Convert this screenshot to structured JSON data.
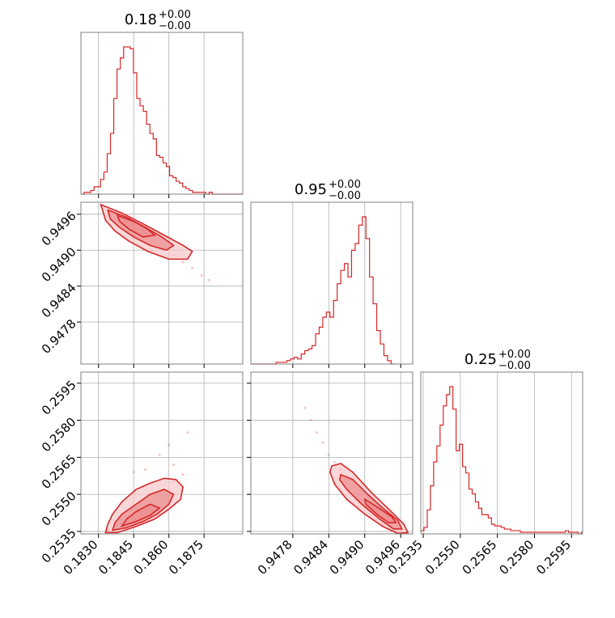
{
  "colors": {
    "accent": "#d62728",
    "fill_light": "#f6c6c7",
    "fill_mid": "#ec8b8d",
    "grid": "#b0b0b0",
    "frame": "#808080"
  },
  "chart_data": {
    "type": "corner",
    "grid": true,
    "parameters": [
      {
        "title": {
          "value": "0.18",
          "sup": "+0.00",
          "sub": "−0.00"
        },
        "range": [
          0.18225,
          0.18915
        ],
        "ticks": [
          0.183,
          0.1845,
          0.186,
          0.1875
        ],
        "tick_labels": [
          "0.1830",
          "0.1845",
          "0.1860",
          "0.1875"
        ]
      },
      {
        "title": {
          "value": "0.95",
          "sup": "+0.00",
          "sub": "−0.00"
        },
        "range": [
          0.9471,
          0.9498
        ],
        "ticks": [
          0.9478,
          0.9484,
          0.949,
          0.9496
        ],
        "tick_labels": [
          "0.9478",
          "0.9484",
          "0.9490",
          "0.9496"
        ]
      },
      {
        "title": {
          "value": "0.25",
          "sup": "+0.00",
          "sub": "−0.00"
        },
        "range": [
          0.2534,
          0.25995
        ],
        "ticks": [
          0.2535,
          0.255,
          0.2565,
          0.258,
          0.2595
        ],
        "tick_labels": [
          "0.2535",
          "0.2550",
          "0.2565",
          "0.2580",
          "0.2595"
        ]
      }
    ],
    "histograms": [
      {
        "param": 0,
        "edges_from": 0.18225,
        "bin_width": 0.00014,
        "counts": [
          0,
          1,
          1,
          2,
          4,
          4,
          8,
          12,
          22,
          33,
          52,
          68,
          74,
          80,
          80,
          79,
          66,
          52,
          48,
          45,
          38,
          33,
          30,
          21,
          20,
          17,
          15,
          10,
          9,
          7,
          6,
          4,
          3,
          2,
          1,
          1,
          1,
          1,
          0,
          1,
          0,
          0,
          0,
          0,
          0,
          0,
          0,
          0,
          0,
          0
        ]
      },
      {
        "param": 1,
        "edges_from": 0.9471,
        "bin_width": 6e-05,
        "counts": [
          0,
          0,
          0,
          0,
          0,
          0,
          0,
          1,
          1,
          1,
          2,
          3,
          4,
          3,
          6,
          8,
          9,
          11,
          18,
          22,
          28,
          31,
          28,
          38,
          48,
          56,
          60,
          52,
          68,
          72,
          83,
          88,
          75,
          52,
          36,
          20,
          12,
          5,
          2,
          0
        ]
      },
      {
        "param": 2,
        "edges_from": 0.2534,
        "bin_width": 0.00013,
        "counts": [
          2,
          4,
          15,
          30,
          45,
          55,
          68,
          80,
          87,
          92,
          78,
          52,
          56,
          42,
          38,
          28,
          25,
          20,
          16,
          12,
          12,
          10,
          6,
          5,
          5,
          4,
          3,
          3,
          2,
          2,
          2,
          1,
          1,
          1,
          1,
          1,
          1,
          1,
          1,
          1,
          1,
          1,
          1,
          1,
          1,
          2,
          1,
          1,
          1,
          0,
          1
        ]
      }
    ],
    "joint": [
      {
        "x": 0,
        "y": 1,
        "points": [
          [
            0.1831,
            0.94974
          ],
          [
            0.1834,
            0.94965
          ],
          [
            0.1838,
            0.94955
          ],
          [
            0.1842,
            0.94945
          ],
          [
            0.1846,
            0.94935
          ],
          [
            0.185,
            0.94925
          ],
          [
            0.1854,
            0.94915
          ],
          [
            0.1858,
            0.94903
          ],
          [
            0.1862,
            0.94892
          ],
          [
            0.1866,
            0.9488
          ],
          [
            0.187,
            0.9487
          ],
          [
            0.1874,
            0.94858
          ],
          [
            0.1877,
            0.9485
          ]
        ],
        "contours": [
          [
            [
              0.1831,
              0.94976
            ],
            [
              0.184,
              0.94962
            ],
            [
              0.185,
              0.94942
            ],
            [
              0.1858,
              0.94925
            ],
            [
              0.1866,
              0.94908
            ],
            [
              0.187,
              0.94898
            ],
            [
              0.1868,
              0.94885
            ],
            [
              0.186,
              0.94885
            ],
            [
              0.1851,
              0.94898
            ],
            [
              0.1843,
              0.94915
            ],
            [
              0.1837,
              0.94932
            ],
            [
              0.1833,
              0.9495
            ],
            [
              0.1831,
              0.94976
            ]
          ],
          [
            [
              0.1834,
              0.94967
            ],
            [
              0.1842,
              0.94955
            ],
            [
              0.185,
              0.94938
            ],
            [
              0.1857,
              0.94922
            ],
            [
              0.1862,
              0.94908
            ],
            [
              0.1859,
              0.949
            ],
            [
              0.1852,
              0.94908
            ],
            [
              0.1845,
              0.94922
            ],
            [
              0.1839,
              0.94938
            ],
            [
              0.1835,
              0.94952
            ],
            [
              0.1834,
              0.94967
            ]
          ],
          [
            [
              0.1838,
              0.94958
            ],
            [
              0.1845,
              0.94948
            ],
            [
              0.1851,
              0.94935
            ],
            [
              0.1854,
              0.94925
            ],
            [
              0.1849,
              0.94922
            ],
            [
              0.1843,
              0.94935
            ],
            [
              0.1839,
              0.94948
            ],
            [
              0.1838,
              0.94958
            ]
          ]
        ]
      },
      {
        "x": 0,
        "y": 2,
        "points": [
          [
            0.1834,
            0.25355
          ],
          [
            0.1838,
            0.2538
          ],
          [
            0.1842,
            0.2541
          ],
          [
            0.1846,
            0.2544
          ],
          [
            0.185,
            0.2547
          ],
          [
            0.1854,
            0.255
          ],
          [
            0.1858,
            0.2552
          ],
          [
            0.1862,
            0.2555
          ],
          [
            0.1866,
            0.2558
          ],
          [
            0.1862,
            0.2562
          ],
          [
            0.1856,
            0.2566
          ],
          [
            0.185,
            0.256
          ],
          [
            0.1845,
            0.2559
          ],
          [
            0.186,
            0.257
          ],
          [
            0.1868,
            0.2575
          ]
        ],
        "contours": [
          [
            [
              0.1833,
              0.25345
            ],
            [
              0.1838,
              0.25345
            ],
            [
              0.1846,
              0.2537
            ],
            [
              0.1854,
              0.254
            ],
            [
              0.186,
              0.2544
            ],
            [
              0.1865,
              0.2548
            ],
            [
              0.1866,
              0.2553
            ],
            [
              0.1863,
              0.2556
            ],
            [
              0.1858,
              0.25565
            ],
            [
              0.1852,
              0.25545
            ],
            [
              0.1846,
              0.2552
            ],
            [
              0.184,
              0.2547
            ],
            [
              0.1836,
              0.2542
            ],
            [
              0.1834,
              0.2538
            ],
            [
              0.1833,
              0.25345
            ]
          ],
          [
            [
              0.1836,
              0.25355
            ],
            [
              0.1842,
              0.25365
            ],
            [
              0.1849,
              0.2539
            ],
            [
              0.1855,
              0.2542
            ],
            [
              0.186,
              0.2546
            ],
            [
              0.1862,
              0.255
            ],
            [
              0.1858,
              0.2552
            ],
            [
              0.1852,
              0.255
            ],
            [
              0.1846,
              0.2546
            ],
            [
              0.184,
              0.2542
            ],
            [
              0.1837,
              0.25385
            ],
            [
              0.1836,
              0.25355
            ]
          ],
          [
            [
              0.184,
              0.25372
            ],
            [
              0.1846,
              0.2539
            ],
            [
              0.1852,
              0.25415
            ],
            [
              0.1856,
              0.25445
            ],
            [
              0.1852,
              0.2546
            ],
            [
              0.1846,
              0.2543
            ],
            [
              0.1842,
              0.254
            ],
            [
              0.184,
              0.25372
            ]
          ]
        ]
      },
      {
        "x": 1,
        "y": 2,
        "points": [
          [
            0.948,
            0.2585
          ],
          [
            0.9481,
            0.258
          ],
          [
            0.9482,
            0.2575
          ],
          [
            0.9483,
            0.2571
          ],
          [
            0.9484,
            0.2566
          ],
          [
            0.9485,
            0.2563
          ],
          [
            0.9486,
            0.256
          ],
          [
            0.9487,
            0.2556
          ],
          [
            0.9488,
            0.2553
          ],
          [
            0.9489,
            0.255
          ],
          [
            0.949,
            0.2547
          ],
          [
            0.9491,
            0.2543
          ],
          [
            0.9492,
            0.254
          ],
          [
            0.9493,
            0.2538
          ],
          [
            0.9494,
            0.2536
          ],
          [
            0.9495,
            0.2535
          ],
          [
            0.9496,
            0.25345
          ]
        ],
        "contours": [
          [
            [
              0.94845,
              0.25615
            ],
            [
              0.9486,
              0.25625
            ],
            [
              0.9488,
              0.2559
            ],
            [
              0.9491,
              0.2551
            ],
            [
              0.9494,
              0.2544
            ],
            [
              0.94965,
              0.2538
            ],
            [
              0.94972,
              0.25345
            ],
            [
              0.94955,
              0.25342
            ],
            [
              0.9493,
              0.2537
            ],
            [
              0.949,
              0.2542
            ],
            [
              0.9487,
              0.2548
            ],
            [
              0.9485,
              0.2554
            ],
            [
              0.94842,
              0.2559
            ],
            [
              0.94845,
              0.25615
            ]
          ],
          [
            [
              0.9486,
              0.2558
            ],
            [
              0.9488,
              0.2556
            ],
            [
              0.94905,
              0.255
            ],
            [
              0.9493,
              0.25445
            ],
            [
              0.94955,
              0.25395
            ],
            [
              0.94962,
              0.2536
            ],
            [
              0.94948,
              0.2536
            ],
            [
              0.94925,
              0.254
            ],
            [
              0.94895,
              0.2546
            ],
            [
              0.9487,
              0.2552
            ],
            [
              0.94858,
              0.2556
            ],
            [
              0.9486,
              0.2558
            ]
          ],
          [
            [
              0.949,
              0.2548
            ],
            [
              0.9492,
              0.2545
            ],
            [
              0.94945,
              0.2541
            ],
            [
              0.94952,
              0.25385
            ],
            [
              0.9494,
              0.25385
            ],
            [
              0.9492,
              0.2542
            ],
            [
              0.94902,
              0.2546
            ],
            [
              0.949,
              0.2548
            ]
          ]
        ]
      }
    ]
  }
}
